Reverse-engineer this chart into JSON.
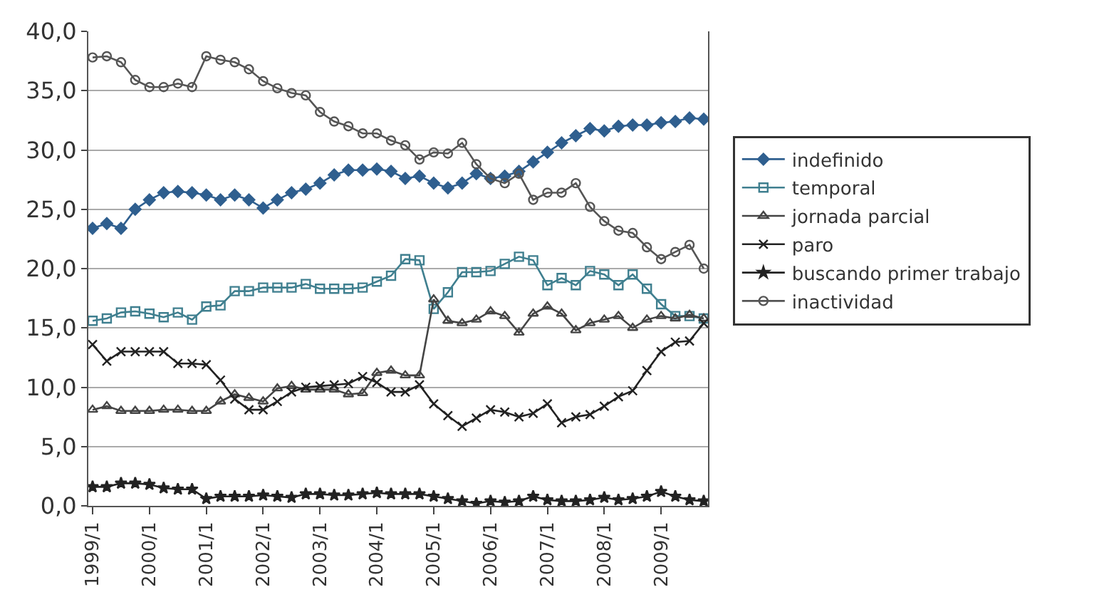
{
  "chart_data": {
    "type": "line",
    "categories": [
      "1999/1",
      null,
      null,
      null,
      "2000/1",
      null,
      null,
      null,
      "2001/1",
      null,
      null,
      null,
      "2002/1",
      null,
      null,
      null,
      "2003/1",
      null,
      null,
      null,
      "2004/1",
      null,
      null,
      null,
      "2005/1",
      null,
      null,
      null,
      "2006/1",
      null,
      null,
      null,
      "2007/1",
      null,
      null,
      null,
      "2008/1",
      null,
      null,
      null,
      "2009/1",
      null,
      null,
      null
    ],
    "ylim": [
      0,
      40
    ],
    "yticks": [
      {
        "value": 0,
        "label": "0,0"
      },
      {
        "value": 5,
        "label": "5,0"
      },
      {
        "value": 10,
        "label": "10,0"
      },
      {
        "value": 15,
        "label": "15,0"
      },
      {
        "value": 20,
        "label": "20,0"
      },
      {
        "value": 25,
        "label": "25,0"
      },
      {
        "value": 30,
        "label": "30,0"
      },
      {
        "value": 35,
        "label": "35,0"
      },
      {
        "value": 40,
        "label": "40,0"
      }
    ],
    "grid": "y",
    "legend": "right",
    "series": [
      {
        "name": "indefinido",
        "color": "#2f5f8f",
        "marker": "diamond",
        "values": [
          23.4,
          23.8,
          23.4,
          25.0,
          25.8,
          26.4,
          26.5,
          26.4,
          26.2,
          25.8,
          26.2,
          25.8,
          25.1,
          25.8,
          26.4,
          26.7,
          27.2,
          27.9,
          28.3,
          28.3,
          28.4,
          28.2,
          27.6,
          27.8,
          27.2,
          26.8,
          27.2,
          28.0,
          27.6,
          27.8,
          28.2,
          29.0,
          29.8,
          30.6,
          31.2,
          31.8,
          31.6,
          32.0,
          32.1,
          32.1,
          32.3,
          32.4,
          32.7,
          32.6
        ]
      },
      {
        "name": "temporal",
        "color": "#3f7f8f",
        "marker": "square",
        "values": [
          15.6,
          15.8,
          16.3,
          16.4,
          16.2,
          15.9,
          16.3,
          15.7,
          16.8,
          16.9,
          18.1,
          18.1,
          18.4,
          18.4,
          18.4,
          18.7,
          18.3,
          18.3,
          18.3,
          18.4,
          18.9,
          19.4,
          20.8,
          20.7,
          16.6,
          18.0,
          19.7,
          19.7,
          19.8,
          20.4,
          21.0,
          20.7,
          18.6,
          19.2,
          18.6,
          19.8,
          19.5,
          18.6,
          19.5,
          18.3,
          17.0,
          16.0,
          16.0,
          15.8
        ]
      },
      {
        "name": "jornada parcial",
        "color": "#444444",
        "marker": "triangle",
        "values": [
          8.1,
          8.4,
          8.0,
          8.0,
          8.0,
          8.1,
          8.1,
          8.0,
          8.0,
          8.8,
          9.4,
          9.1,
          8.8,
          9.9,
          10.1,
          9.8,
          9.8,
          9.8,
          9.4,
          9.5,
          11.2,
          11.4,
          11.0,
          11.0,
          17.4,
          15.6,
          15.4,
          15.7,
          16.4,
          16.0,
          14.6,
          16.2,
          16.8,
          16.2,
          14.8,
          15.4,
          15.7,
          16.0,
          15.0,
          15.7,
          16.0,
          15.8,
          16.1,
          15.8
        ]
      },
      {
        "name": "paro",
        "color": "#222222",
        "marker": "cross",
        "values": [
          13.6,
          12.2,
          13.0,
          13.0,
          13.0,
          13.0,
          12.0,
          12.0,
          11.9,
          10.6,
          9.0,
          8.1,
          8.1,
          8.8,
          9.6,
          10.0,
          10.1,
          10.2,
          10.3,
          10.9,
          10.4,
          9.6,
          9.6,
          10.2,
          8.6,
          7.6,
          6.7,
          7.4,
          8.1,
          7.9,
          7.5,
          7.8,
          8.6,
          7.0,
          7.5,
          7.7,
          8.4,
          9.2,
          9.7,
          11.4,
          13.0,
          13.8,
          13.9,
          15.4
        ]
      },
      {
        "name": "buscando primer trabajo",
        "color": "#222222",
        "marker": "star",
        "values": [
          1.6,
          1.6,
          1.9,
          1.9,
          1.8,
          1.5,
          1.4,
          1.4,
          0.6,
          0.8,
          0.8,
          0.8,
          0.9,
          0.8,
          0.7,
          1.0,
          1.0,
          0.9,
          0.9,
          1.0,
          1.1,
          1.0,
          1.0,
          1.0,
          0.8,
          0.6,
          0.4,
          0.2,
          0.4,
          0.3,
          0.4,
          0.8,
          0.5,
          0.4,
          0.4,
          0.5,
          0.7,
          0.5,
          0.6,
          0.8,
          1.2,
          0.8,
          0.5,
          0.4
        ]
      },
      {
        "name": "inactividad",
        "color": "#555555",
        "marker": "circle",
        "values": [
          37.8,
          37.9,
          37.4,
          35.9,
          35.3,
          35.3,
          35.6,
          35.3,
          37.9,
          37.6,
          37.4,
          36.8,
          35.8,
          35.2,
          34.8,
          34.6,
          33.2,
          32.4,
          32.0,
          31.4,
          31.4,
          30.8,
          30.4,
          29.2,
          29.8,
          29.7,
          30.6,
          28.8,
          27.6,
          27.2,
          28.0,
          25.8,
          26.4,
          26.4,
          27.2,
          25.2,
          24.0,
          23.2,
          23.0,
          21.8,
          20.8,
          21.4,
          22.0,
          20.0
        ]
      }
    ]
  }
}
